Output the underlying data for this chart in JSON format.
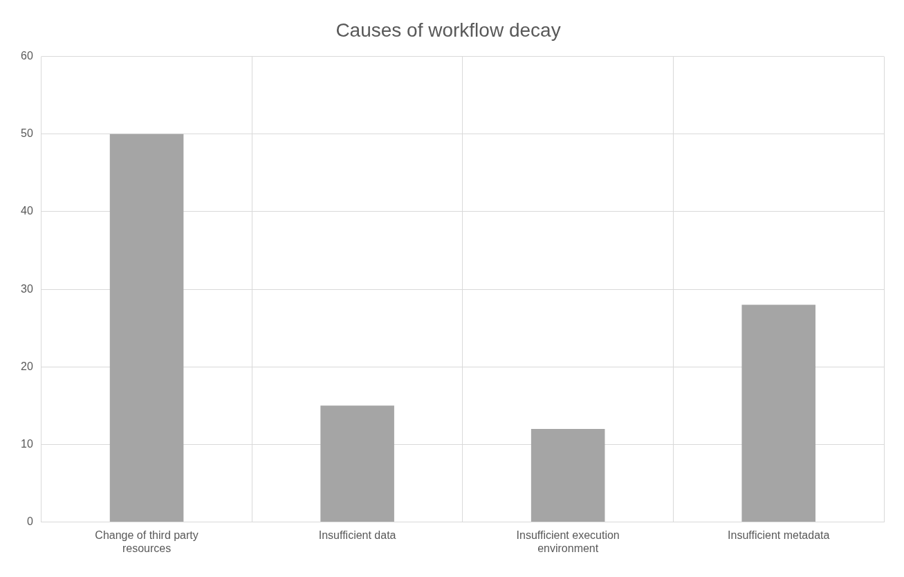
{
  "chart_data": {
    "type": "bar",
    "title": "Causes of workflow decay",
    "categories": [
      "Change of third party resources",
      "Insufficient data",
      "Insufficient execution environment",
      "Insufficient metadata"
    ],
    "values": [
      50,
      15,
      12,
      28
    ],
    "color": "#a5a5a5",
    "ylim": [
      0,
      60
    ],
    "yticks": [
      0,
      10,
      20,
      30,
      40,
      50,
      60
    ],
    "grid": true,
    "legend": false
  }
}
